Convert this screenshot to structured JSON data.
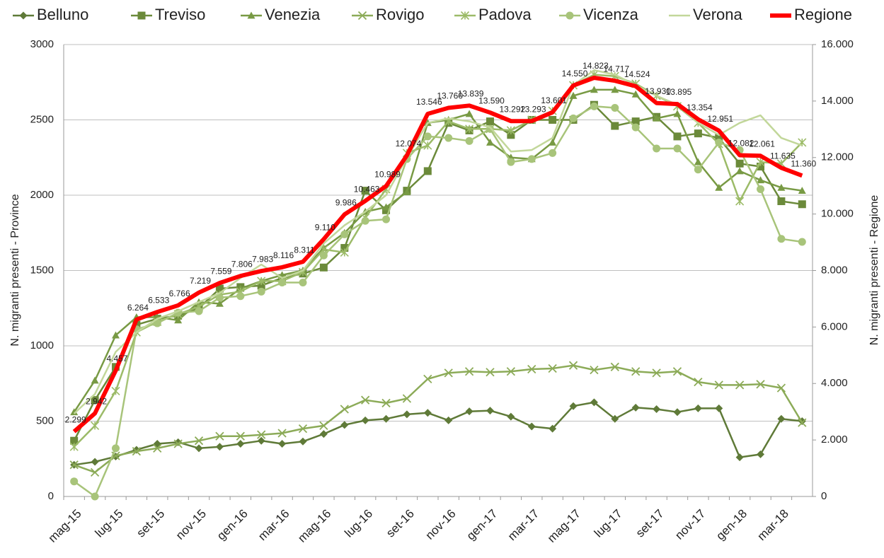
{
  "chart_data": {
    "type": "line",
    "categories": [
      "mag-15",
      null,
      "lug-15",
      null,
      "set-15",
      null,
      "nov-15",
      null,
      "gen-16",
      null,
      "mar-16",
      null,
      "mag-16",
      null,
      "lug-16",
      null,
      "set-16",
      null,
      "nov-16",
      null,
      "gen-17",
      null,
      "mar-17",
      null,
      "mag-17",
      null,
      "lug-17",
      null,
      "set-17",
      null,
      "nov-17",
      null,
      "gen-18",
      null,
      "mar-18",
      null
    ],
    "ylabel": "N. migranti presenti - Province",
    "y2label": "N. migranti presenti - Regione",
    "ylim": [
      0,
      3000
    ],
    "yticks": [
      0,
      500,
      1000,
      1500,
      2000,
      2500,
      3000
    ],
    "y2lim": [
      0,
      16000
    ],
    "y2ticks": [
      0,
      {
        "value": 2000,
        "label": "2.000"
      },
      {
        "value": 4000,
        "label": "4.000"
      },
      {
        "value": 6000,
        "label": "6.000"
      },
      {
        "value": 8000,
        "label": "8.000"
      },
      {
        "value": 10000,
        "label": "10.000"
      },
      {
        "value": 12000,
        "label": "12.000"
      },
      {
        "value": 14000,
        "label": "14.000"
      },
      {
        "value": 16000,
        "label": "16.000"
      }
    ],
    "grid": true,
    "legend": "top",
    "series": [
      {
        "name": "Belluno",
        "color": "#5f7a38",
        "marker": "diamond",
        "values": [
          210,
          230,
          265,
          310,
          350,
          360,
          320,
          330,
          350,
          370,
          350,
          365,
          415,
          475,
          505,
          515,
          545,
          555,
          505,
          565,
          570,
          530,
          465,
          450,
          600,
          625,
          515,
          590,
          580,
          560,
          585,
          585,
          260,
          280,
          515,
          500
        ]
      },
      {
        "name": "Treviso",
        "color": "#6b8a3a",
        "marker": "square",
        "values": [
          370,
          640,
          860,
          1140,
          1180,
          1200,
          1250,
          1380,
          1390,
          1400,
          1450,
          1480,
          1520,
          1650,
          2030,
          1900,
          2030,
          2160,
          2480,
          2430,
          2490,
          2400,
          2500,
          2500,
          2500,
          2600,
          2460,
          2490,
          2520,
          2390,
          2410,
          2380,
          2210,
          2190,
          1960,
          1940
        ]
      },
      {
        "name": "Venezia",
        "color": "#789a44",
        "marker": "triangle",
        "values": [
          560,
          770,
          1070,
          1190,
          1190,
          1170,
          1290,
          1280,
          1380,
          1430,
          1470,
          1500,
          1650,
          1750,
          1890,
          1920,
          2020,
          2480,
          2500,
          2540,
          2350,
          2250,
          2240,
          2350,
          2660,
          2700,
          2700,
          2670,
          2510,
          2540,
          2220,
          2050,
          2160,
          2100,
          2050,
          2030
        ]
      },
      {
        "name": "Rovigo",
        "color": "#8cab58",
        "marker": "x",
        "values": [
          210,
          160,
          270,
          300,
          320,
          350,
          370,
          400,
          400,
          410,
          420,
          450,
          470,
          580,
          640,
          620,
          650,
          780,
          820,
          830,
          825,
          830,
          845,
          850,
          870,
          840,
          860,
          830,
          820,
          830,
          760,
          740,
          740,
          745,
          720,
          490
        ]
      },
      {
        "name": "Padova",
        "color": "#9cbb68",
        "marker": "star",
        "values": [
          330,
          470,
          700,
          1090,
          1160,
          1210,
          1260,
          1340,
          1360,
          1430,
          1430,
          1490,
          1640,
          1620,
          1850,
          2040,
          2280,
          2330,
          2490,
          2440,
          2440,
          2430,
          2500,
          2560,
          2730,
          2800,
          2790,
          2740,
          2660,
          2590,
          2480,
          2340,
          1960,
          2220,
          2210,
          2350
        ]
      },
      {
        "name": "Vicenza",
        "color": "#a8c47a",
        "marker": "circle",
        "values": [
          100,
          0,
          320,
          1110,
          1150,
          1220,
          1230,
          1320,
          1330,
          1360,
          1420,
          1420,
          1600,
          1740,
          1830,
          1840,
          2240,
          2390,
          2380,
          2360,
          2440,
          2220,
          2240,
          2280,
          2510,
          2590,
          2580,
          2450,
          2310,
          2310,
          2170,
          2350,
          2300,
          2040,
          1710,
          1690
        ]
      },
      {
        "name": "Verona",
        "color": "#c2d79a",
        "marker": "none",
        "values": [
          550,
          680,
          960,
          1090,
          1180,
          1230,
          1290,
          1350,
          1450,
          1540,
          1450,
          1500,
          1680,
          1800,
          1890,
          2000,
          2250,
          2480,
          2510,
          2490,
          2450,
          2290,
          2300,
          2380,
          2730,
          2830,
          2800,
          2730,
          2660,
          2600,
          2480,
          2400,
          2480,
          2530,
          2380,
          2330
        ]
      },
      {
        "name": "Regione",
        "color": "#ff0000",
        "marker": "none",
        "axis": "y2",
        "values": [
          2299,
          2942,
          4457,
          6264,
          6533,
          6766,
          7219,
          7559,
          7806,
          7983,
          8116,
          8311,
          9110,
          9986,
          10463,
          10989,
          12074,
          13546,
          13760,
          13839,
          13590,
          13292,
          13293,
          13601,
          14550,
          14823,
          14717,
          14524,
          13930,
          13895,
          13354,
          12951,
          12082,
          12061,
          11635,
          11360
        ],
        "value_labels": [
          "2.299",
          "2.942",
          "4.457",
          "6.264",
          "6.533",
          "6.766",
          "7.219",
          "7.559",
          "7.806",
          "7.983",
          "8.116",
          "8.311",
          "9.110",
          "9.986",
          "10.463",
          "10.989",
          "12.074",
          "13.546",
          "13.760",
          "13.839",
          "13.590",
          "13.292",
          "13.293",
          "13.601",
          "14.550",
          "14.823",
          "14.717",
          "14.524",
          "13.930",
          "13.895",
          "13.354",
          "12.951",
          "12.082",
          "12.061",
          "11.635",
          "11.360"
        ]
      }
    ]
  }
}
